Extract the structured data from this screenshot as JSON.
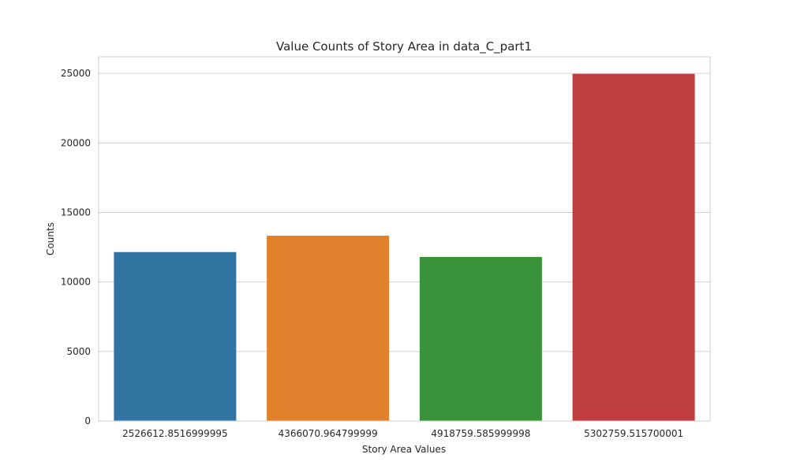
{
  "chart_data": {
    "type": "bar",
    "title": "Value Counts of Story Area in data_C_part1",
    "xlabel": "Story Area Values",
    "ylabel": "Counts",
    "categories": [
      "2526612.8516999995",
      "4366070.964799999",
      "4918759.585999998",
      "5302759.515700001"
    ],
    "values": [
      12150,
      13330,
      11800,
      24970
    ],
    "colors": [
      "#3274a1",
      "#e1812c",
      "#3a923a",
      "#c03d3e"
    ],
    "ylim": [
      0,
      26200
    ],
    "yticks": [
      0,
      5000,
      10000,
      15000,
      20000,
      25000
    ],
    "grid": true,
    "legend": "none"
  }
}
